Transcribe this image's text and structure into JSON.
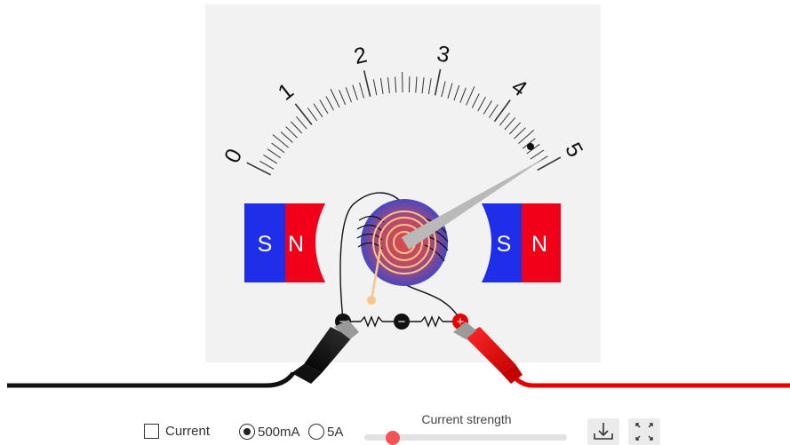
{
  "meter": {
    "scale_labels": [
      "0",
      "1",
      "2",
      "3",
      "4",
      "5"
    ],
    "needle_value": 4.9
  },
  "magnets": {
    "left": {
      "south": "S",
      "north": "N"
    },
    "right": {
      "south": "S",
      "north": "N"
    }
  },
  "terminals": {
    "left": "−",
    "middle": "−",
    "right": "+"
  },
  "controls": {
    "current_checkbox_label": "Current",
    "current_checked": false,
    "range_options": [
      "500mA",
      "5A"
    ],
    "range_selected": "500mA",
    "slider_label": "Current strength",
    "slider_value": 0.1
  },
  "icons": {
    "download": "download-icon",
    "fullscreen": "fullscreen-icon"
  },
  "colors": {
    "magnet_south": "#1f2ee8",
    "magnet_north": "#f20019",
    "panel": "#f2f2f2",
    "red_lead": "#e50000",
    "black_lead": "#111111",
    "slider_thumb": "#f25454"
  }
}
